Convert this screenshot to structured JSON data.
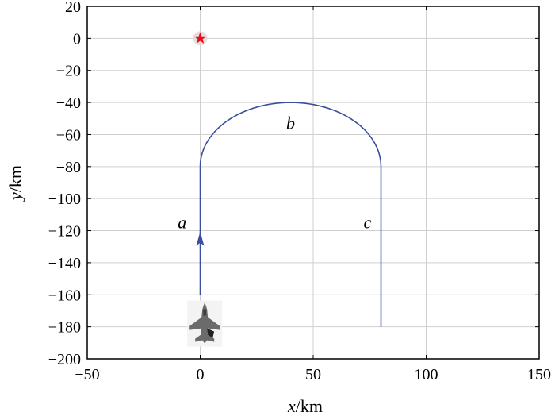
{
  "chart_data": {
    "type": "line",
    "title": "",
    "xlabel": {
      "var": "x",
      "unit": "/km"
    },
    "ylabel": {
      "var": "y",
      "unit": "/km"
    },
    "xlim": [
      -50,
      150
    ],
    "ylim": [
      -200,
      20
    ],
    "xticks": [
      -50,
      0,
      50,
      100,
      150
    ],
    "yticks": [
      20,
      0,
      -20,
      -40,
      -60,
      -80,
      -100,
      -120,
      -140,
      -160,
      -180,
      -200
    ],
    "xtick_labels": [
      "−50",
      "0",
      "50",
      "100",
      "150"
    ],
    "ytick_labels": [
      "20",
      "0",
      "−20",
      "−40",
      "−60",
      "−80",
      "−100",
      "−120",
      "−140",
      "−160",
      "−180",
      "−200"
    ],
    "grid": true,
    "series": [
      {
        "color": "#3a4fa0",
        "segments": [
          {
            "label": "a",
            "shape": "line",
            "points": [
              [
                0,
                -160
              ],
              [
                0,
                -80
              ]
            ],
            "label_at": [
              -8,
              -115
            ]
          },
          {
            "label": "b",
            "shape": "arc",
            "from": [
              0,
              -80
            ],
            "peak": [
              40,
              -40
            ],
            "to": [
              80,
              -80
            ],
            "label_at": [
              40,
              -53
            ]
          },
          {
            "label": "c",
            "shape": "line",
            "points": [
              [
                80,
                -80
              ],
              [
                80,
                -180
              ]
            ],
            "label_at": [
              74,
              -115
            ]
          }
        ],
        "arrow": {
          "at": [
            0,
            -125
          ],
          "direction": "up"
        }
      }
    ],
    "markers": [
      {
        "name": "target",
        "symbol": "star",
        "x": 0,
        "y": 0,
        "color": "#e8101a"
      },
      {
        "name": "aircraft",
        "symbol": "fighter-jet",
        "x": 2,
        "y": -178,
        "color": "#6b6b6b"
      }
    ]
  }
}
